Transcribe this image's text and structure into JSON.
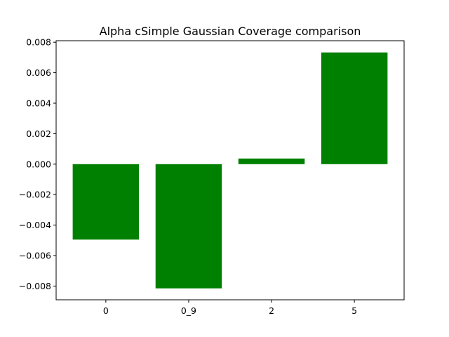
{
  "chart_data": {
    "type": "bar",
    "title": "Alpha cSimple Gaussian Coverage comparison",
    "xlabel": "",
    "ylabel": "",
    "categories": [
      "0",
      "0_9",
      "2",
      "5"
    ],
    "values": [
      -0.00495,
      -0.00815,
      0.00037,
      0.00733
    ],
    "ylim": [
      -0.0089,
      0.0081
    ],
    "yticks": [
      -0.008,
      -0.006,
      -0.004,
      -0.002,
      0.0,
      0.002,
      0.004,
      0.006,
      0.008
    ],
    "ytick_labels": [
      "−0.008",
      "−0.006",
      "−0.004",
      "−0.002",
      "0.000",
      "0.002",
      "0.004",
      "0.006",
      "0.008"
    ],
    "bar_color": "#008000",
    "grid": false,
    "legend": "none"
  }
}
